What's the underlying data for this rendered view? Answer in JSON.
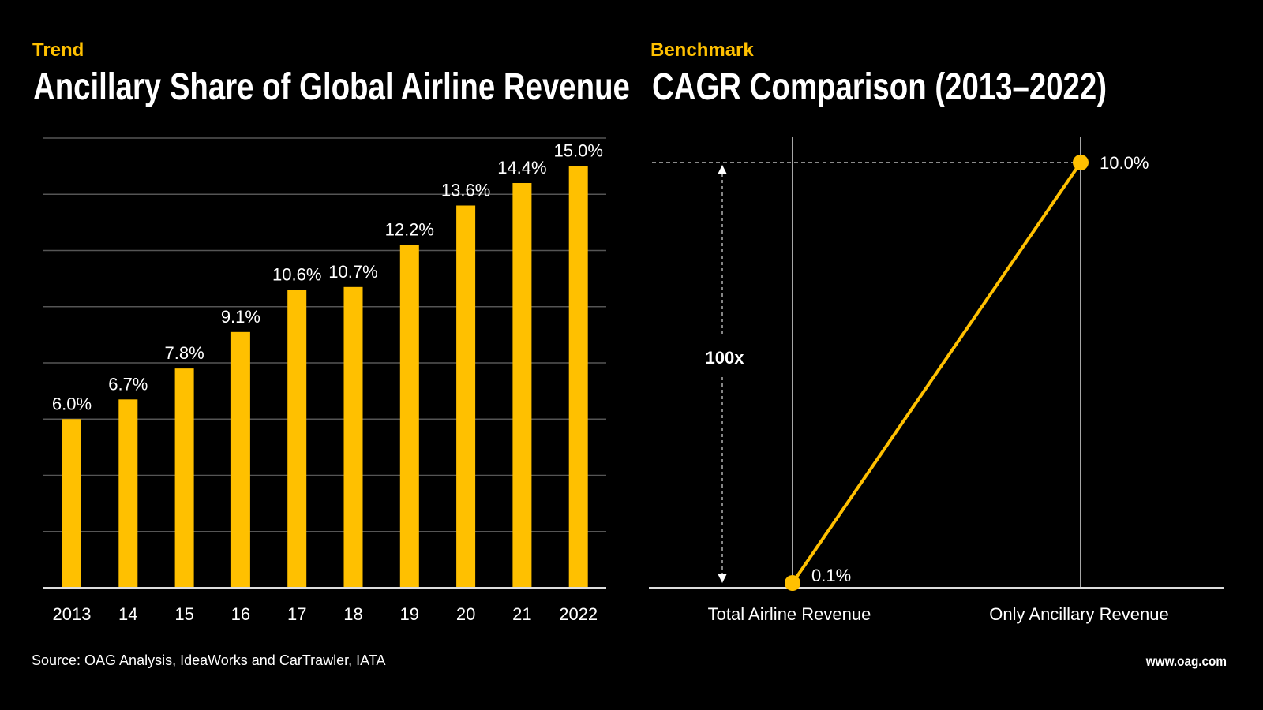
{
  "colors": {
    "background": "#000000",
    "accent": "#FFC000",
    "text": "#FFFFFF",
    "grid": "#555555"
  },
  "left": {
    "kicker": "Trend",
    "title": "Ancillary Share of Global Airline Revenue"
  },
  "right": {
    "kicker": "Benchmark",
    "title": "CAGR Comparison (2013–2022)",
    "annotation": "100x"
  },
  "footer": {
    "source": "Source: OAG Analysis, IdeaWorks and CarTrawler, IATA",
    "url": "www.oag.com"
  },
  "chart_data": [
    {
      "type": "bar",
      "title": "Ancillary Share of Global Airline Revenue",
      "categories": [
        "2013",
        "14",
        "15",
        "16",
        "17",
        "18",
        "19",
        "20",
        "21",
        "2022"
      ],
      "values": [
        6.0,
        6.7,
        7.8,
        9.1,
        10.6,
        10.7,
        12.2,
        13.6,
        14.4,
        15.0
      ],
      "labels": [
        "6.0%",
        "6.7%",
        "7.8%",
        "9.1%",
        "10.6%",
        "10.7%",
        "12.2%",
        "13.6%",
        "14.4%",
        "15.0%"
      ],
      "unit": "%",
      "ylim": [
        0,
        16
      ],
      "grid": true,
      "grid_step": 2
    },
    {
      "type": "line",
      "title": "CAGR Comparison (2013–2022)",
      "categories": [
        "Total Airline Revenue",
        "Only Ancillary Revenue"
      ],
      "values": [
        0.1,
        10.0
      ],
      "labels": [
        "0.1%",
        "10.0%"
      ],
      "unit": "%",
      "ylim": [
        0,
        10
      ],
      "annotation": "100x"
    }
  ]
}
